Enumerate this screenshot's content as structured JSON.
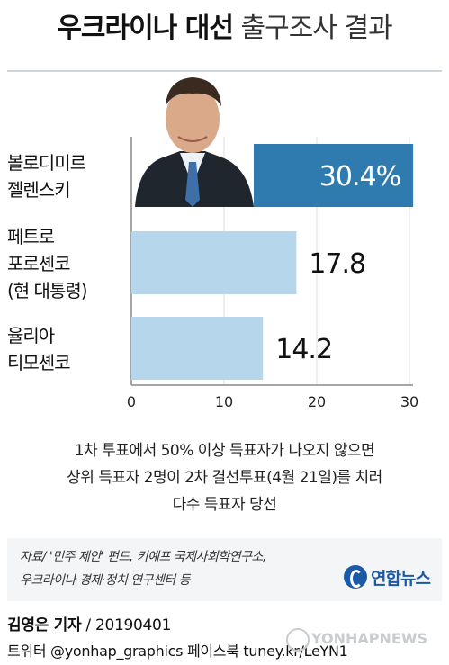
{
  "title": {
    "bold": "우크라이나 대선",
    "light": "출구조사 결과"
  },
  "chart_data": {
    "type": "bar",
    "orientation": "horizontal",
    "categories": [
      [
        "볼로디미르",
        "젤렌스키"
      ],
      [
        "페트로",
        "포로셴코",
        "(현 대통령)"
      ],
      [
        "율리아",
        "티모셴코"
      ]
    ],
    "values": [
      30.4,
      17.8,
      14.2
    ],
    "value_labels": [
      "30.4%",
      "17.8",
      "14.2"
    ],
    "xlim": [
      0,
      30
    ],
    "xticks": [
      0,
      10,
      20,
      30
    ],
    "x_tick_labels": [
      "0",
      "10",
      "20",
      "30"
    ],
    "colors": [
      "#2f7bb0",
      "#b6d6ec",
      "#b6d6ec"
    ],
    "grid": true,
    "highlight_photo": "politician-photo"
  },
  "note": [
    "1차 투표에서 50% 이상 득표자가 나오지 않으면",
    "상위 득표자 2명이 2차 결선투표(4월 21일)를 치러",
    "다수 득표자 당선"
  ],
  "source": [
    "자료/ '민주 제안' 펀드, 키예프 국제사회학연구소,",
    "우크라이나 경제·정치 연구센터 등"
  ],
  "logo": {
    "text": "연합뉴스",
    "color": "#1c5aa6"
  },
  "footer": {
    "author": "김영은 기자",
    "date": " / 20190401",
    "social": "트위터 @yonhap_graphics  페이스북 tuney.kr/LeYN1"
  },
  "watermark": "YONHAPNEWS"
}
